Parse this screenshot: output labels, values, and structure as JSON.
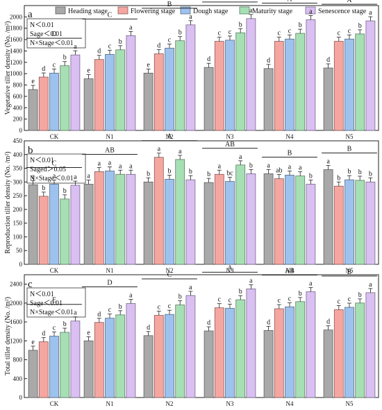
{
  "legend": {
    "items": [
      {
        "label": "Heading stage",
        "color": "#a9a9a9"
      },
      {
        "label": "Flowering stage",
        "color": "#f6a6a0"
      },
      {
        "label": "Dough stage",
        "color": "#9ec2ee"
      },
      {
        "label": "Maturity stage",
        "color": "#a7dfb4"
      },
      {
        "label": "Senescence stage",
        "color": "#d9bff2"
      }
    ]
  },
  "chart_data": [
    {
      "type": "bar",
      "panel": "a",
      "ylabel": "Vegetative tiller density (No. /m²)",
      "ylim": [
        0,
        2200
      ],
      "yticks": [
        0,
        200,
        400,
        600,
        800,
        1000,
        1200,
        1400,
        1600,
        1800,
        2000
      ],
      "categories": [
        "CK",
        "N1",
        "N2",
        "N3",
        "N4",
        "N5"
      ],
      "series": [
        {
          "name": "Heading stage",
          "values": [
            720,
            910,
            1010,
            1110,
            1090,
            1100
          ]
        },
        {
          "name": "Flowering stage",
          "values": [
            940,
            1250,
            1350,
            1570,
            1570,
            1570
          ]
        },
        {
          "name": "Dough stage",
          "values": [
            1010,
            1340,
            1450,
            1590,
            1610,
            1610
          ]
        },
        {
          "name": "Maturity stage",
          "values": [
            1140,
            1420,
            1580,
            1720,
            1710,
            1700
          ]
        },
        {
          "name": "Senescence stage",
          "values": [
            1330,
            1670,
            1860,
            1970,
            1950,
            1930
          ]
        }
      ],
      "letters": [
        [
          "e",
          "d",
          "c",
          "b",
          "a"
        ],
        [
          "e",
          "d",
          "c",
          "b",
          "a"
        ],
        [
          "e",
          "d",
          "c",
          "b",
          "a"
        ],
        [
          "d",
          "c",
          "c",
          "b",
          "a"
        ],
        [
          "d",
          "c",
          "c",
          "b",
          "a"
        ],
        [
          "d",
          "c",
          "c",
          "b",
          "a"
        ]
      ],
      "group_letters": [
        "D",
        "C",
        "B",
        "A",
        "A",
        "A"
      ],
      "stats": [
        "N＜0.01",
        "Sage＜0.01",
        "N×Stage＜0.01"
      ]
    },
    {
      "type": "bar",
      "panel": "b",
      "ylabel": "Reproduction tiller density (No. /m²)",
      "ylim": [
        0,
        450
      ],
      "yticks": [
        0,
        50,
        100,
        150,
        200,
        250,
        300,
        350,
        400,
        450
      ],
      "categories": [
        "CK",
        "N1",
        "N2",
        "N3",
        "N4",
        "N5"
      ],
      "series": [
        {
          "name": "Heading stage",
          "values": [
            290,
            292,
            300,
            298,
            330,
            345
          ]
        },
        {
          "name": "Flowering stage",
          "values": [
            248,
            338,
            390,
            328,
            312,
            285
          ]
        },
        {
          "name": "Dough stage",
          "values": [
            292,
            340,
            310,
            302,
            325,
            308
          ]
        },
        {
          "name": "Maturity stage",
          "values": [
            238,
            328,
            382,
            362,
            322,
            306
          ]
        },
        {
          "name": "Senescence stage",
          "values": [
            288,
            328,
            308,
            330,
            292,
            300
          ]
        }
      ],
      "letters": [
        [
          "a",
          "b",
          "a",
          "b",
          "a"
        ],
        [
          "a",
          "a",
          "a",
          "a",
          "a"
        ],
        [
          "b",
          "a",
          "b",
          "a",
          "b"
        ],
        [
          "b",
          "a",
          "bc",
          "a",
          "b"
        ],
        [
          "a",
          "ab",
          "a",
          "a",
          "b"
        ],
        [
          "a",
          "b",
          "b",
          "b",
          "b"
        ]
      ],
      "group_letters": [
        "C",
        "AB",
        "A",
        "AB",
        "B",
        "B"
      ],
      "stats": [
        "N＜0.01",
        "Saged＞0.05",
        "N×Stage＜0.01"
      ]
    },
    {
      "type": "bar",
      "panel": "c",
      "ylabel": "Total tiller density (No. /m²)",
      "ylim": [
        0,
        2600
      ],
      "yticks": [
        0,
        400,
        800,
        1200,
        1600,
        2000,
        2400
      ],
      "categories": [
        "CK",
        "N1",
        "N2",
        "N3",
        "N4",
        "N5"
      ],
      "series": [
        {
          "name": "Heading stage",
          "values": [
            1000,
            1200,
            1310,
            1410,
            1420,
            1430
          ]
        },
        {
          "name": "Flowering stage",
          "values": [
            1180,
            1590,
            1740,
            1900,
            1880,
            1860
          ]
        },
        {
          "name": "Dough stage",
          "values": [
            1300,
            1680,
            1760,
            1890,
            1920,
            1910
          ]
        },
        {
          "name": "Maturity stage",
          "values": [
            1380,
            1750,
            1960,
            2070,
            2030,
            2000
          ]
        },
        {
          "name": "Senescence stage",
          "values": [
            1620,
            1990,
            2160,
            2300,
            2240,
            2220
          ]
        }
      ],
      "letters": [
        [
          "e",
          "d",
          "c",
          "b",
          "a"
        ],
        [
          "e",
          "d",
          "c",
          "b",
          "a"
        ],
        [
          "d",
          "c",
          "c",
          "b",
          "a"
        ],
        [
          "d",
          "c",
          "c",
          "b",
          "a"
        ],
        [
          "d",
          "c",
          "c",
          "b",
          "a"
        ],
        [
          "d",
          "c",
          "c",
          "b",
          "a"
        ]
      ],
      "group_letters": [
        "E",
        "D",
        "C",
        "A",
        "AB",
        "B"
      ],
      "stats": [
        "N＜0.01",
        "Sage＜0.01",
        "N×Stage＜0.01"
      ]
    }
  ]
}
